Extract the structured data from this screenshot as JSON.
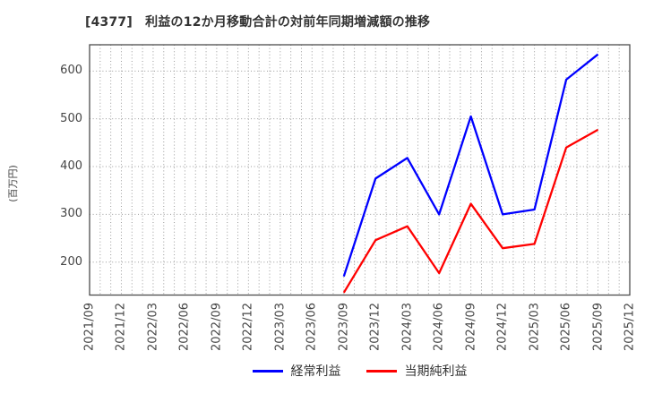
{
  "chart_data": {
    "type": "line",
    "title": "[4377]　利益の12か月移動合計の対前年同期増減額の推移",
    "ylabel": "(百万円)",
    "xlabel": "",
    "categories": [
      "2021/09",
      "2021/12",
      "2022/03",
      "2022/06",
      "2022/09",
      "2022/12",
      "2023/03",
      "2023/06",
      "2023/09",
      "2023/12",
      "2024/03",
      "2024/06",
      "2024/09",
      "2024/12",
      "2025/03",
      "2025/06",
      "2025/09",
      "2025/12"
    ],
    "series": [
      {
        "name": "経常利益",
        "color": "#0000ff",
        "values": [
          null,
          null,
          null,
          null,
          null,
          null,
          null,
          null,
          170,
          375,
          418,
          300,
          505,
          300,
          310,
          582,
          635,
          null
        ]
      },
      {
        "name": "当期純利益",
        "color": "#ff0000",
        "values": [
          null,
          null,
          null,
          null,
          null,
          null,
          null,
          null,
          136,
          246,
          275,
          177,
          322,
          229,
          238,
          440,
          477,
          null
        ]
      }
    ],
    "yticks": [
      200,
      300,
      400,
      500,
      600
    ],
    "ylim": [
      131,
      655
    ],
    "grid": "dotted",
    "x_minor_gridlines": "monthly",
    "legend_position": "bottom-center",
    "line_width": 2.3
  }
}
